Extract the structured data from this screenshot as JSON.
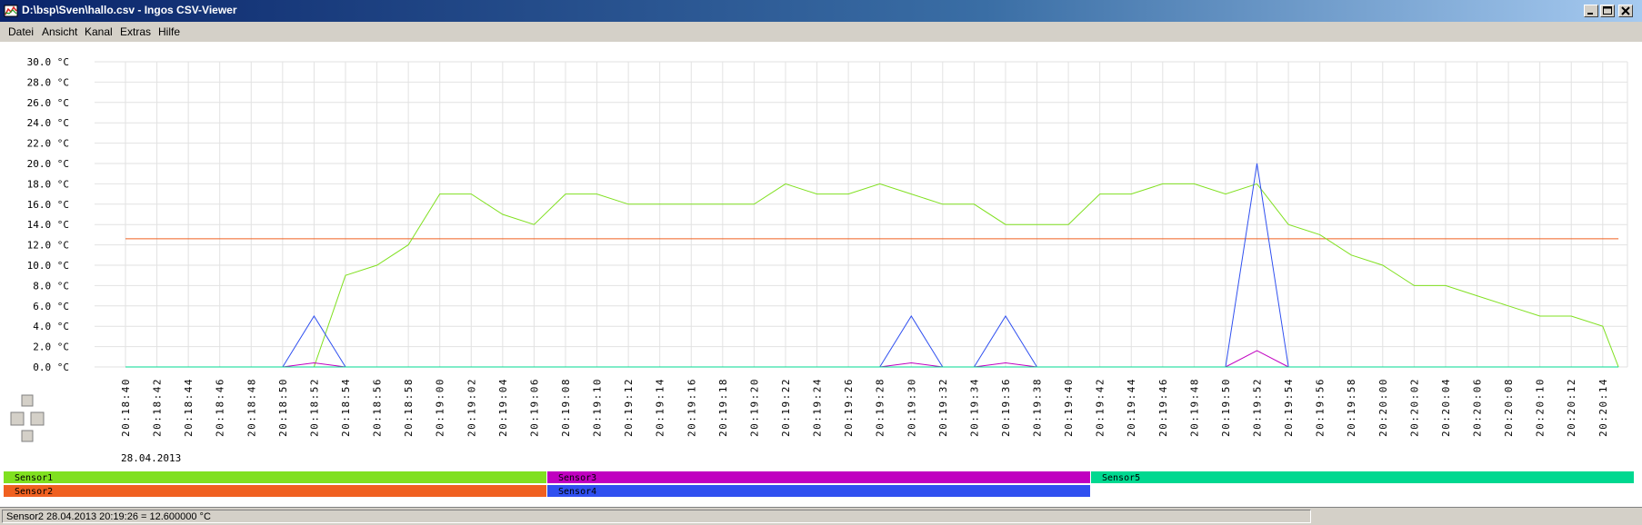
{
  "window": {
    "title": "D:\\bsp\\Sven\\hallo.csv - Ingos CSV-Viewer"
  },
  "menu": {
    "items": [
      "Datei",
      "Ansicht",
      "Kanal",
      "Extras",
      "Hilfe"
    ]
  },
  "chart_data": {
    "type": "line",
    "date_label": "28.04.2013",
    "y_unit": "°C",
    "y_ticks": [
      "0.0 °C",
      "2.0 °C",
      "4.0 °C",
      "6.0 °C",
      "8.0 °C",
      "10.0 °C",
      "12.0 °C",
      "14.0 °C",
      "16.0 °C",
      "18.0 °C",
      "20.0 °C",
      "22.0 °C",
      "24.0 °C",
      "26.0 °C",
      "28.0 °C",
      "30.0 °C"
    ],
    "ylim": [
      0,
      30
    ],
    "x_ticks": [
      "20:18:40",
      "20:18:42",
      "20:18:44",
      "20:18:46",
      "20:18:48",
      "20:18:50",
      "20:18:52",
      "20:18:54",
      "20:18:56",
      "20:18:58",
      "20:19:00",
      "20:19:02",
      "20:19:04",
      "20:19:06",
      "20:19:08",
      "20:19:10",
      "20:19:12",
      "20:19:14",
      "20:19:16",
      "20:19:18",
      "20:19:20",
      "20:19:22",
      "20:19:24",
      "20:19:26",
      "20:19:28",
      "20:19:30",
      "20:19:32",
      "20:19:34",
      "20:19:36",
      "20:19:38",
      "20:19:40",
      "20:19:42",
      "20:19:44",
      "20:19:46",
      "20:19:48",
      "20:19:50",
      "20:19:52",
      "20:19:54",
      "20:19:56",
      "20:19:58",
      "20:20:00",
      "20:20:02",
      "20:20:04",
      "20:20:06",
      "20:20:08",
      "20:20:10",
      "20:20:12",
      "20:20:14"
    ],
    "grid": true,
    "series": [
      {
        "name": "Sensor1",
        "color": "#80e020",
        "x": [
          "20:18:52",
          "20:18:54",
          "20:18:56",
          "20:18:58",
          "20:19:00",
          "20:19:02",
          "20:19:04",
          "20:19:06",
          "20:19:08",
          "20:19:10",
          "20:19:12",
          "20:19:14",
          "20:19:16",
          "20:19:18",
          "20:19:20",
          "20:19:22",
          "20:19:24",
          "20:19:26",
          "20:19:28",
          "20:19:30",
          "20:19:32",
          "20:19:34",
          "20:19:36",
          "20:19:38",
          "20:19:40",
          "20:19:42",
          "20:19:44",
          "20:19:46",
          "20:19:48",
          "20:19:50",
          "20:19:52",
          "20:19:54",
          "20:19:56",
          "20:19:58",
          "20:20:00",
          "20:20:02",
          "20:20:04",
          "20:20:06",
          "20:20:08",
          "20:20:10",
          "20:20:12",
          "20:20:14",
          "20:20:15"
        ],
        "y": [
          0,
          9,
          10,
          12,
          17,
          17,
          15,
          14,
          17,
          17,
          16,
          16,
          16,
          16,
          16,
          18,
          17,
          17,
          18,
          17,
          16,
          16,
          14,
          14,
          14,
          17,
          17,
          18,
          18,
          17,
          18,
          14,
          13,
          11,
          10,
          8,
          8,
          7,
          6,
          5,
          5,
          4,
          0
        ]
      },
      {
        "name": "Sensor2",
        "color": "#f06020",
        "x": [
          "20:18:40",
          "20:20:15"
        ],
        "y": [
          12.6,
          12.6
        ]
      },
      {
        "name": "Sensor3",
        "color": "#c000c0",
        "x": [
          "20:18:50",
          "20:18:52",
          "20:18:54",
          "20:19:28",
          "20:19:30",
          "20:19:32",
          "20:19:34",
          "20:19:36",
          "20:19:38",
          "20:19:50",
          "20:19:52",
          "20:19:54"
        ],
        "y": [
          0,
          0.4,
          0,
          0,
          0.4,
          0,
          0,
          0.4,
          0,
          0,
          1.6,
          0
        ]
      },
      {
        "name": "Sensor4",
        "color": "#3050f0",
        "x": [
          "20:18:50",
          "20:18:52",
          "20:18:54",
          "20:19:28",
          "20:19:30",
          "20:19:32",
          "20:19:34",
          "20:19:36",
          "20:19:38",
          "20:19:50",
          "20:19:52",
          "20:19:54"
        ],
        "y": [
          0,
          5,
          0,
          0,
          5,
          0,
          0,
          5,
          0,
          0,
          20,
          0
        ]
      },
      {
        "name": "Sensor5",
        "color": "#00d890",
        "x": [
          "20:18:40",
          "20:20:15"
        ],
        "y": [
          0,
          0
        ]
      }
    ]
  },
  "legend": {
    "row1": [
      "Sensor1",
      "Sensor3",
      "Sensor5"
    ],
    "row2": [
      "Sensor2",
      "Sensor4"
    ]
  },
  "status": {
    "text": "Sensor2 28.04.2013 20:19:26 = 12.600000 °C"
  }
}
